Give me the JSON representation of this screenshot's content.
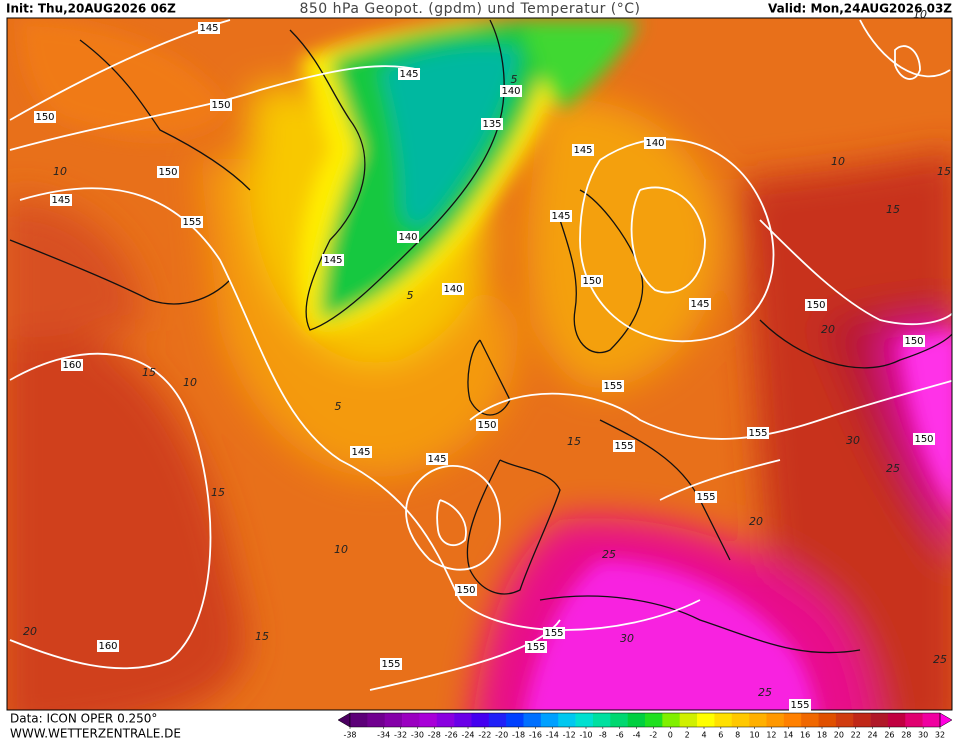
{
  "header": {
    "init": "Init: Thu,20AUG2026 06Z",
    "title": "850 hPa Geopot. (gpdm) und Temperatur (°C)",
    "valid": "Valid: Mon,24AUG2026 03Z"
  },
  "contour_labels": [
    145,
    145,
    150,
    150,
    140,
    135,
    145,
    140,
    150,
    145,
    155,
    145,
    140,
    145,
    140,
    150,
    145,
    150,
    150,
    160,
    155,
    150,
    155,
    155,
    150,
    145,
    145,
    155,
    150,
    155,
    155,
    160,
    155,
    155
  ],
  "isotherm_labels": [
    10,
    10,
    15,
    15,
    20,
    30,
    25,
    20,
    25,
    30,
    25,
    25,
    15,
    15,
    10,
    15,
    5,
    10,
    20,
    15,
    5,
    10,
    5
  ],
  "colorbar": {
    "colors": [
      "#4b0060",
      "#5c0078",
      "#70008f",
      "#8400a8",
      "#9a00c0",
      "#a800d8",
      "#8a00e0",
      "#6a00e8",
      "#4400f0",
      "#2020f8",
      "#0040ff",
      "#0070ff",
      "#00a0ff",
      "#00c8f0",
      "#00e0d0",
      "#00e0a0",
      "#00d870",
      "#00d040",
      "#20e020",
      "#80f000",
      "#d0f000",
      "#ffff00",
      "#ffe000",
      "#ffc800",
      "#ffb000",
      "#ff9800",
      "#ff8000",
      "#f06800",
      "#e05000",
      "#d03c10",
      "#c02818",
      "#b01828",
      "#c00040",
      "#e00070",
      "#f000a0",
      "#ff00e0"
    ],
    "ticks": [
      -38,
      -34,
      -32,
      -30,
      -28,
      -26,
      -24,
      -22,
      -20,
      -18,
      -16,
      -14,
      -12,
      -10,
      -8,
      -6,
      -4,
      -2,
      0,
      2,
      4,
      6,
      8,
      10,
      12,
      14,
      16,
      18,
      20,
      22,
      24,
      26,
      28,
      30,
      32
    ]
  },
  "footer": {
    "source": "Data: ICON OPER 0.250°",
    "website": "WWW.WETTERZENTRALE.DE"
  }
}
